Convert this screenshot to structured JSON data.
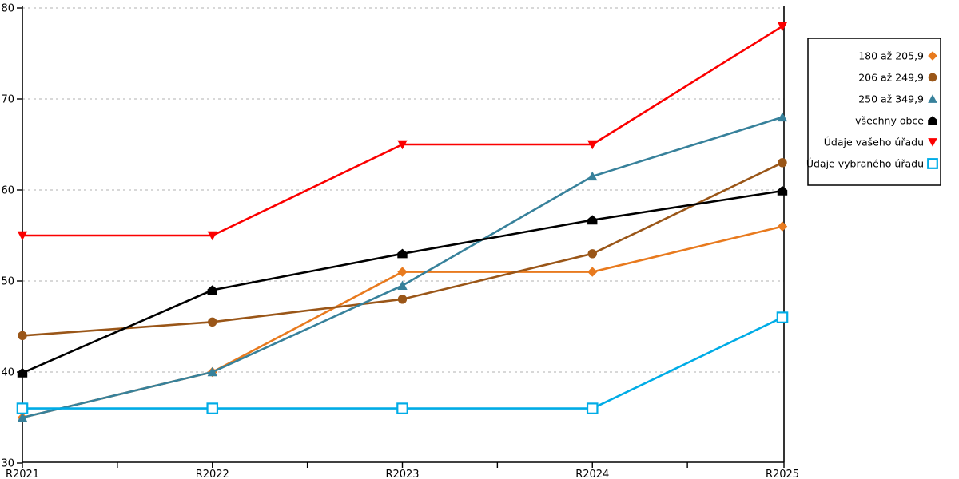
{
  "chart_data": {
    "type": "line",
    "title": "",
    "x_categories": [
      "R2021",
      "R2022",
      "R2023",
      "R2024",
      "R2025"
    ],
    "y_ticks": [
      30,
      40,
      50,
      60,
      70,
      80
    ],
    "ylim": [
      30,
      80
    ],
    "xlabel": "",
    "ylabel": "",
    "grid": "horizontal-dashed",
    "legend_position": "outside-right-top",
    "series": [
      {
        "name": "180 až 205,9",
        "marker": "diamond",
        "color": "#E87A1E",
        "values": [
          35,
          40,
          51,
          51,
          56
        ]
      },
      {
        "name": "206 až 249,9",
        "marker": "circle",
        "color": "#9A5618",
        "values": [
          44,
          45.5,
          48,
          53,
          63
        ]
      },
      {
        "name": "250 až 349,9",
        "marker": "triangle-up",
        "color": "#37819B",
        "values": [
          35,
          40,
          49.5,
          61.5,
          68
        ]
      },
      {
        "name": "všechny obce",
        "marker": "pentagon",
        "color": "#000000",
        "values": [
          39.9,
          49,
          53,
          56.7,
          59.9
        ]
      },
      {
        "name": "Údaje vašeho úřadu",
        "marker": "triangle-down",
        "color": "#FB0000",
        "values": [
          55,
          55,
          65,
          65,
          78
        ]
      },
      {
        "name": "Údaje vybraného úřadu",
        "marker": "square-open",
        "color": "#00ACE6",
        "values": [
          36,
          36,
          36,
          36,
          46
        ]
      }
    ]
  },
  "colors": {
    "axis": "#000000",
    "grid": "#C0C0C0",
    "background": "#FFFFFF",
    "legend_border": "#000000"
  }
}
